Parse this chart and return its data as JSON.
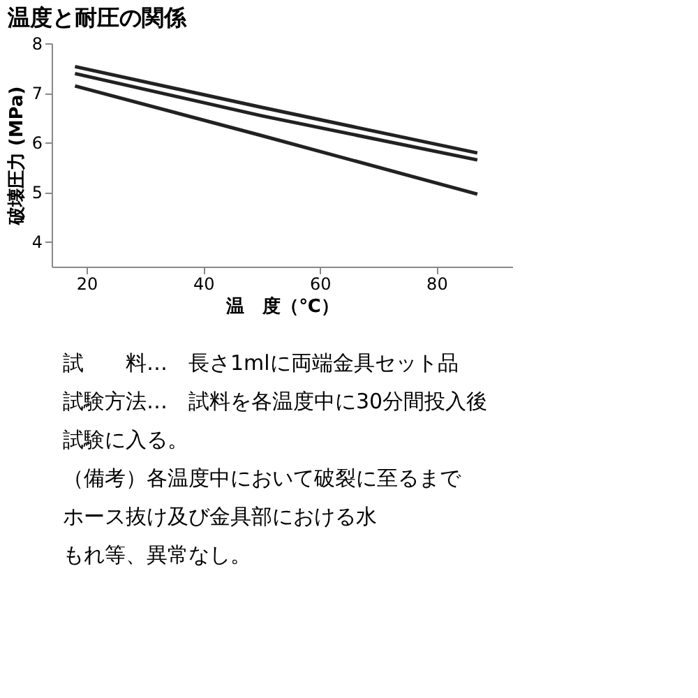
{
  "chart_data": {
    "type": "line",
    "title": "温度と耐圧の関係",
    "xlabel": "温　度（℃）",
    "ylabel": "破壊圧力 (MPa)",
    "xlim": [
      14,
      93
    ],
    "xticks": [
      20,
      40,
      60,
      80
    ],
    "ylim": [
      3.5,
      8
    ],
    "yticks": [
      4,
      5,
      6,
      7,
      8
    ],
    "series": [
      {
        "color": "#222222",
        "x": [
          18,
          50,
          87
        ],
        "values": [
          7.53,
          6.71,
          5.79
        ]
      },
      {
        "color": "#222222",
        "x": [
          18,
          50,
          87
        ],
        "values": [
          7.39,
          6.54,
          5.65
        ]
      },
      {
        "color": "#222222",
        "x": [
          18,
          50,
          87
        ],
        "values": [
          7.14,
          6.14,
          4.96
        ]
      }
    ],
    "annotations": [
      "試　　料…　長さ1mlに両端金具セット品",
      "試験方法…　試料を各温度中に30分間投入後",
      "試験に入る。",
      "（備考）各温度中において破裂に至るまで",
      "ホース抜け及び金具部における水",
      "もれ等、異常なし。"
    ],
    "grid": false,
    "marker": "none",
    "line_style": "solid"
  }
}
